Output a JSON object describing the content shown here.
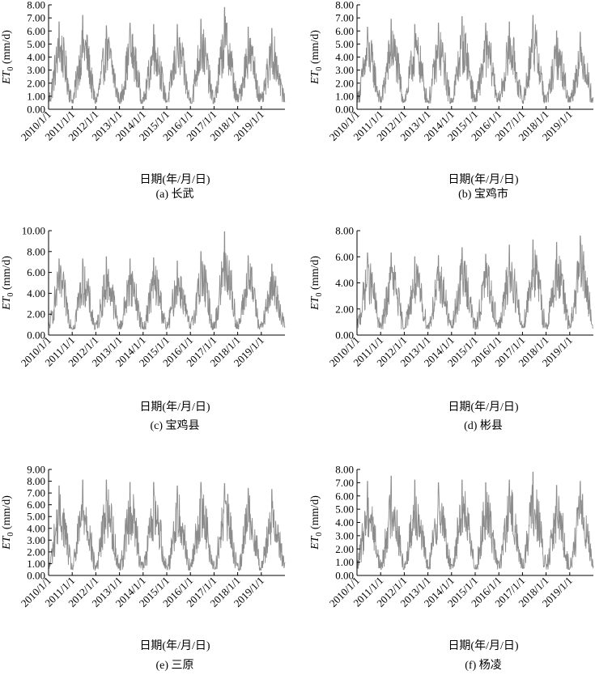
{
  "figure": {
    "x_categories": [
      "2010/1/1",
      "2011/1/1",
      "2012/1/1",
      "2013/1/1",
      "2014/1/1",
      "2015/1/1",
      "2016/1/1",
      "2017/1/1",
      "2018/1/1",
      "2019/1/1"
    ],
    "line_color": "#8c8c8c"
  },
  "chart_data": [
    {
      "type": "line",
      "panel_label": "(a) 长武",
      "xlabel": "日期(年/月/日)",
      "ylabel_main": "ET",
      "ylabel_sub": "0",
      "ylabel_unit": " (mm/d)",
      "ylim": [
        0,
        8
      ],
      "yticks": [
        "0.00",
        "1.00",
        "2.00",
        "3.00",
        "4.00",
        "5.00",
        "6.00",
        "7.00",
        "8.00"
      ],
      "series": [
        {
          "x": [
            "2010/1/1",
            "2011/1/1",
            "2012/1/1",
            "2013/1/1",
            "2014/1/1",
            "2015/1/1",
            "2016/1/1",
            "2017/1/1",
            "2018/1/1",
            "2019/1/1"
          ],
          "annual_peak": [
            6.7,
            7.2,
            6.4,
            6.6,
            6.5,
            6.5,
            6.9,
            7.8,
            6.3,
            6.2
          ],
          "annual_min": [
            0.6,
            0.5,
            0.6,
            0.5,
            0.6,
            0.6,
            0.5,
            0.6,
            0.6,
            0.6
          ]
        }
      ]
    },
    {
      "type": "line",
      "panel_label": "(b) 宝鸡市",
      "xlabel": "日期(年/月/日)",
      "ylabel_main": "ET",
      "ylabel_sub": "0",
      "ylabel_unit": " (mm/d)",
      "ylim": [
        0,
        8
      ],
      "yticks": [
        "0.00",
        "1.00",
        "2.00",
        "3.00",
        "4.00",
        "5.00",
        "6.00",
        "7.00",
        "8.00"
      ],
      "series": [
        {
          "x": [
            "2010/1/1",
            "2011/1/1",
            "2012/1/1",
            "2013/1/1",
            "2014/1/1",
            "2015/1/1",
            "2016/1/1",
            "2017/1/1",
            "2018/1/1",
            "2019/1/1"
          ],
          "annual_peak": [
            6.3,
            6.9,
            6.5,
            6.6,
            7.1,
            6.6,
            6.7,
            7.2,
            6.0,
            5.9
          ],
          "annual_min": [
            0.6,
            0.6,
            0.6,
            0.5,
            0.6,
            0.6,
            0.6,
            0.5,
            0.6,
            0.6
          ]
        }
      ]
    },
    {
      "type": "line",
      "panel_label": "(c) 宝鸡县",
      "xlabel": "日期(年/月/日)",
      "ylabel_main": "ET",
      "ylabel_sub": "0",
      "ylabel_unit": " (mm/d)",
      "ylim": [
        0,
        10
      ],
      "yticks": [
        "0.00",
        "2.00",
        "4.00",
        "6.00",
        "8.00",
        "10.00"
      ],
      "series": [
        {
          "x": [
            "2010/1/1",
            "2011/1/1",
            "2012/1/1",
            "2013/1/1",
            "2014/1/1",
            "2015/1/1",
            "2016/1/1",
            "2017/1/1",
            "2018/1/1",
            "2019/1/1"
          ],
          "annual_peak": [
            7.3,
            7.3,
            7.5,
            7.3,
            7.4,
            7.1,
            8.0,
            9.9,
            7.6,
            6.8
          ],
          "annual_min": [
            0.7,
            0.6,
            0.7,
            0.6,
            0.6,
            0.7,
            0.6,
            0.7,
            0.6,
            0.8
          ]
        }
      ]
    },
    {
      "type": "line",
      "panel_label": "(d) 彬县",
      "xlabel": "日期(年/月/日)",
      "ylabel_main": "ET",
      "ylabel_sub": "0",
      "ylabel_unit": " (mm/d)",
      "ylim": [
        0,
        8
      ],
      "yticks": [
        "0.00",
        "2.00",
        "4.00",
        "6.00",
        "8.00"
      ],
      "series": [
        {
          "x": [
            "2010/1/1",
            "2011/1/1",
            "2012/1/1",
            "2013/1/1",
            "2014/1/1",
            "2015/1/1",
            "2016/1/1",
            "2017/1/1",
            "2018/1/1",
            "2019/1/1"
          ],
          "annual_peak": [
            6.3,
            6.3,
            6.0,
            6.1,
            6.7,
            6.2,
            6.9,
            7.3,
            7.1,
            7.6
          ],
          "annual_min": [
            0.6,
            0.5,
            0.6,
            0.5,
            0.6,
            0.5,
            0.6,
            0.6,
            0.5,
            0.6
          ]
        }
      ]
    },
    {
      "type": "line",
      "panel_label": "(e) 三原",
      "xlabel": "日期(年/月/日)",
      "ylabel_main": "ET",
      "ylabel_sub": "0",
      "ylabel_unit": " (mm/d)",
      "ylim": [
        0,
        9
      ],
      "yticks": [
        "0.00",
        "1.00",
        "2.00",
        "3.00",
        "4.00",
        "5.00",
        "6.00",
        "7.00",
        "8.00",
        "9.00"
      ],
      "series": [
        {
          "x": [
            "2010/1/1",
            "2011/1/1",
            "2012/1/1",
            "2013/1/1",
            "2014/1/1",
            "2015/1/1",
            "2016/1/1",
            "2017/1/1",
            "2018/1/1",
            "2019/1/1"
          ],
          "annual_peak": [
            7.6,
            8.1,
            8.1,
            7.9,
            7.9,
            7.6,
            7.9,
            7.8,
            7.4,
            7.3
          ],
          "annual_min": [
            0.6,
            0.5,
            0.6,
            0.5,
            0.6,
            0.5,
            0.6,
            0.6,
            0.5,
            0.7
          ]
        }
      ]
    },
    {
      "type": "line",
      "panel_label": "(f) 杨凌",
      "xlabel": "日期(年/月/日)",
      "ylabel_main": "ET",
      "ylabel_sub": "0",
      "ylabel_unit": " (mm/d)",
      "ylim": [
        0,
        8
      ],
      "yticks": [
        "0.00",
        "1.00",
        "2.00",
        "3.00",
        "4.00",
        "5.00",
        "6.00",
        "7.00",
        "8.00"
      ],
      "series": [
        {
          "x": [
            "2010/1/1",
            "2011/1/1",
            "2012/1/1",
            "2013/1/1",
            "2014/1/1",
            "2015/1/1",
            "2016/1/1",
            "2017/1/1",
            "2018/1/1",
            "2019/1/1"
          ],
          "annual_peak": [
            7.1,
            7.5,
            7.2,
            7.0,
            7.2,
            7.0,
            7.2,
            7.8,
            6.8,
            7.1
          ],
          "annual_min": [
            0.6,
            0.5,
            0.6,
            0.5,
            0.6,
            0.5,
            0.6,
            0.6,
            0.5,
            0.6
          ]
        }
      ]
    }
  ]
}
